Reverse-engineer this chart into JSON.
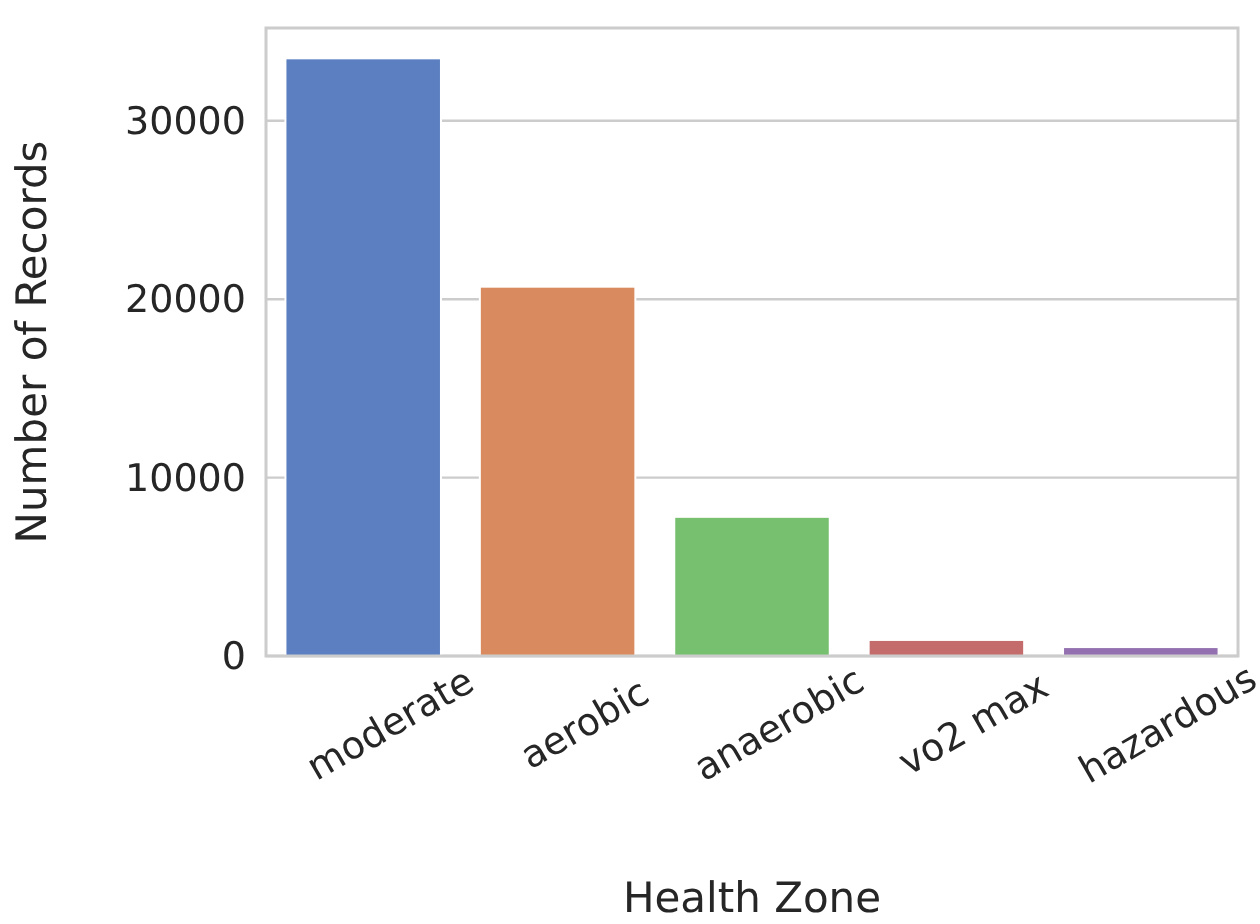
{
  "chart_data": {
    "type": "bar",
    "xlabel": "Health Zone",
    "ylabel": "Number of Records",
    "categories": [
      "moderate",
      "aerobic",
      "anaerobic",
      "vo2 max",
      "hazardous"
    ],
    "values": [
      33500,
      20700,
      7800,
      900,
      500
    ],
    "colors": [
      "#5b7fc1",
      "#d98b5f",
      "#77c06f",
      "#c46c6c",
      "#9370b0"
    ],
    "ylim": [
      0,
      35200
    ],
    "yticks": [
      0,
      10000,
      20000,
      30000
    ],
    "grid": "y"
  }
}
